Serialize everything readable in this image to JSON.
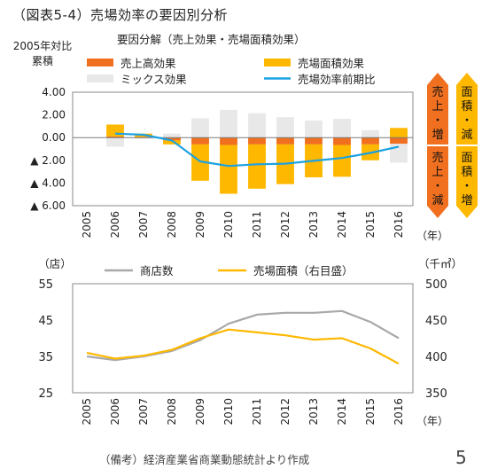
{
  "header": {
    "title": "（図表5-4）売場効率の要因別分析",
    "subtitle": "要因分解（売上効果・売場面積効果）"
  },
  "footer": {
    "source": "（備考）経済産業省商業動態統計より作成",
    "page": "5"
  },
  "chart_data": [
    {
      "type": "bar",
      "stacked": true,
      "ylabel": "2005年対比\n累積",
      "categories": [
        "2005",
        "2006",
        "2007",
        "2008",
        "2009",
        "2010",
        "2011",
        "2012",
        "2013",
        "2014",
        "2015",
        "2016"
      ],
      "x_unit": "（年）",
      "ylim": [
        -6,
        4
      ],
      "yticks": [
        {
          "value": 4,
          "label": "4.00"
        },
        {
          "value": 2,
          "label": "2.00"
        },
        {
          "value": 0,
          "label": "0.00"
        },
        {
          "value": -2,
          "label": "▲ 2.00"
        },
        {
          "value": -4,
          "label": "▲ 4.00"
        },
        {
          "value": -6,
          "label": "▲ 6.00"
        }
      ],
      "series": [
        {
          "name": "売上高効果",
          "kind": "bar",
          "color": "#F07020",
          "values": [
            0,
            0.1,
            0.05,
            -0.25,
            -0.6,
            -0.65,
            -0.6,
            -0.6,
            -0.6,
            -0.65,
            -0.6,
            -0.55
          ]
        },
        {
          "name": "売場面積効果",
          "kind": "bar",
          "color": "#FFB800",
          "values": [
            0,
            1.05,
            0.3,
            -0.35,
            -3.2,
            -4.3,
            -3.9,
            -3.5,
            -2.9,
            -2.8,
            -1.4,
            0.85
          ]
        },
        {
          "name": "ミックス効果",
          "kind": "bar",
          "color": "#E8E8E8",
          "values": [
            0,
            -0.8,
            -0.1,
            0.35,
            1.7,
            2.45,
            2.15,
            1.8,
            1.5,
            1.65,
            0.65,
            -1.65
          ]
        },
        {
          "name": "売場効率前期比",
          "kind": "line",
          "color": "#1BA1E2",
          "values": [
            null,
            0.35,
            0.25,
            -0.25,
            -2.1,
            -2.5,
            -2.35,
            -2.3,
            -2.05,
            -1.8,
            -1.35,
            -0.8
          ]
        }
      ],
      "annotations": [
        {
          "text": "売上・増",
          "side": "up",
          "color": "#F07020"
        },
        {
          "text": "売上・減",
          "side": "down",
          "color": "#F07020"
        },
        {
          "text": "面積・減",
          "side": "up",
          "color": "#FFB800"
        },
        {
          "text": "面積・増",
          "side": "down",
          "color": "#FFB800"
        }
      ]
    },
    {
      "type": "line",
      "categories": [
        "2005",
        "2006",
        "2007",
        "2008",
        "2009",
        "2010",
        "2011",
        "2012",
        "2013",
        "2014",
        "2015",
        "2016"
      ],
      "x_unit": "（年）",
      "ylabel": "（店）",
      "ylabel_right": "（千㎡）",
      "ylim": [
        25,
        55
      ],
      "ylim_right": [
        350,
        500
      ],
      "yticks": [
        55,
        45,
        35,
        25
      ],
      "yticks_right": [
        500,
        450,
        400,
        350
      ],
      "series": [
        {
          "name": "商店数",
          "axis": "left",
          "color": "#A8A8A8",
          "values": [
            35.0,
            34.0,
            35.0,
            36.5,
            39.5,
            44.0,
            46.5,
            47.0,
            47.0,
            47.5,
            44.5,
            40.0
          ]
        },
        {
          "name": "売場面積（右目盛）",
          "axis": "right",
          "color": "#FFB800",
          "values": [
            405,
            397,
            401,
            409,
            425,
            437,
            433,
            429,
            423,
            425,
            411,
            390
          ]
        }
      ]
    }
  ]
}
